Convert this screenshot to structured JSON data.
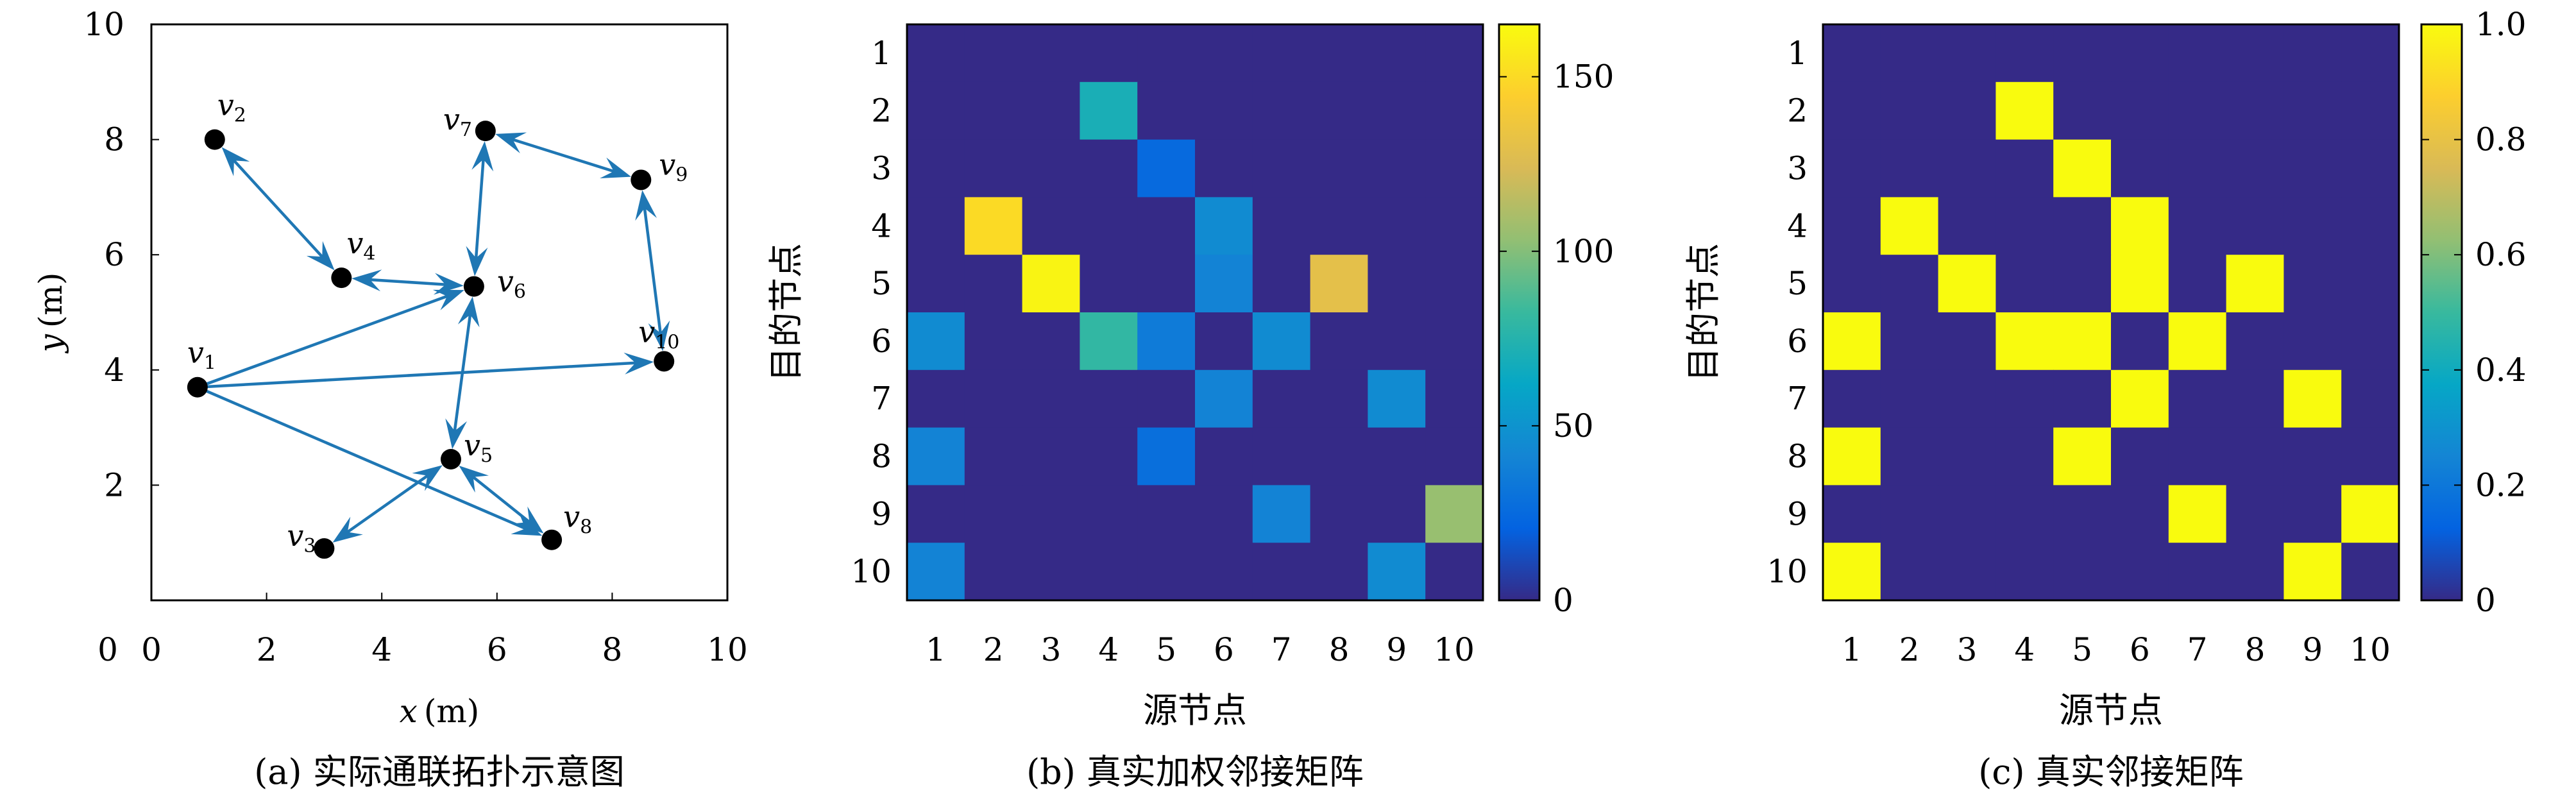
{
  "chart_data": [
    {
      "type": "scatter",
      "caption": "(a) 实际通联拓扑示意图",
      "xlabel_var": "x",
      "xlabel_unit": "(m)",
      "ylabel_var": "y",
      "ylabel_unit": "(m)",
      "xlim": [
        0,
        10
      ],
      "ylim": [
        0,
        10
      ],
      "xticks": [
        0,
        2,
        4,
        6,
        8,
        10
      ],
      "yticks": [
        2,
        4,
        6,
        8,
        10
      ],
      "nodes": [
        {
          "id": 1,
          "name": "v",
          "sub": "1",
          "x": 0.8,
          "y": 3.7
        },
        {
          "id": 2,
          "name": "v",
          "sub": "2",
          "x": 1.1,
          "y": 8.0
        },
        {
          "id": 3,
          "name": "v",
          "sub": "3",
          "x": 3.0,
          "y": 0.9
        },
        {
          "id": 4,
          "name": "v",
          "sub": "4",
          "x": 3.3,
          "y": 5.6
        },
        {
          "id": 5,
          "name": "v",
          "sub": "5",
          "x": 5.2,
          "y": 2.45
        },
        {
          "id": 6,
          "name": "v",
          "sub": "6",
          "x": 5.6,
          "y": 5.45
        },
        {
          "id": 7,
          "name": "v",
          "sub": "7",
          "x": 5.8,
          "y": 8.15
        },
        {
          "id": 8,
          "name": "v",
          "sub": "8",
          "x": 6.95,
          "y": 1.05
        },
        {
          "id": 9,
          "name": "v",
          "sub": "9",
          "x": 8.5,
          "y": 7.3
        },
        {
          "id": 10,
          "name": "v",
          "sub": "10",
          "x": 8.9,
          "y": 4.15
        }
      ],
      "edges": [
        {
          "from": 2,
          "to": 4,
          "arrow_from": true,
          "arrow_to": true
        },
        {
          "from": 4,
          "to": 6,
          "arrow_from": true,
          "arrow_to": true
        },
        {
          "from": 1,
          "to": 6,
          "arrow_from": false,
          "arrow_to": true
        },
        {
          "from": 1,
          "to": 10,
          "arrow_from": false,
          "arrow_to": true
        },
        {
          "from": 1,
          "to": 8,
          "arrow_from": false,
          "arrow_to": true
        },
        {
          "from": 7,
          "to": 6,
          "arrow_from": true,
          "arrow_to": true
        },
        {
          "from": 7,
          "to": 9,
          "arrow_from": true,
          "arrow_to": true
        },
        {
          "from": 9,
          "to": 10,
          "arrow_from": true,
          "arrow_to": true
        },
        {
          "from": 6,
          "to": 5,
          "arrow_from": true,
          "arrow_to": true
        },
        {
          "from": 5,
          "to": 3,
          "arrow_from": true,
          "arrow_to": true
        },
        {
          "from": 5,
          "to": 8,
          "arrow_from": true,
          "arrow_to": true
        }
      ],
      "edge_color": "#1f77b4",
      "node_color": "#000000"
    },
    {
      "type": "heatmap",
      "caption": "(b) 真实加权邻接矩阵",
      "xlabel": "源节点",
      "ylabel": "目的节点",
      "categories": [
        "1",
        "2",
        "3",
        "4",
        "5",
        "6",
        "7",
        "8",
        "9",
        "10"
      ],
      "clim": [
        0,
        165
      ],
      "colorbar_ticks": [
        0,
        50,
        100,
        150
      ],
      "matrix": [
        [
          0,
          0,
          0,
          0,
          0,
          0,
          0,
          0,
          0,
          0
        ],
        [
          0,
          0,
          0,
          70,
          0,
          0,
          0,
          0,
          0,
          0
        ],
        [
          0,
          0,
          0,
          0,
          25,
          0,
          0,
          0,
          0,
          0
        ],
        [
          0,
          150,
          0,
          0,
          0,
          45,
          0,
          0,
          0,
          0
        ],
        [
          0,
          0,
          162,
          0,
          0,
          40,
          0,
          130,
          0,
          0
        ],
        [
          45,
          0,
          0,
          80,
          35,
          0,
          45,
          0,
          0,
          0
        ],
        [
          0,
          0,
          0,
          0,
          0,
          40,
          0,
          0,
          45,
          0
        ],
        [
          40,
          0,
          0,
          0,
          28,
          0,
          0,
          0,
          0,
          0
        ],
        [
          0,
          0,
          0,
          0,
          0,
          0,
          40,
          0,
          0,
          105
        ],
        [
          40,
          0,
          0,
          0,
          0,
          0,
          0,
          0,
          45,
          0
        ]
      ]
    },
    {
      "type": "heatmap",
      "caption": "(c) 真实邻接矩阵",
      "xlabel": "源节点",
      "ylabel": "目的节点",
      "categories": [
        "1",
        "2",
        "3",
        "4",
        "5",
        "6",
        "7",
        "8",
        "9",
        "10"
      ],
      "clim": [
        0,
        1
      ],
      "colorbar_ticks": [
        0,
        0.2,
        0.4,
        0.6,
        0.8,
        1.0
      ],
      "colorbar_labels": [
        "0",
        "0.2",
        "0.4",
        "0.6",
        "0.8",
        "1.0"
      ],
      "matrix": [
        [
          0,
          0,
          0,
          0,
          0,
          0,
          0,
          0,
          0,
          0
        ],
        [
          0,
          0,
          0,
          1,
          0,
          0,
          0,
          0,
          0,
          0
        ],
        [
          0,
          0,
          0,
          0,
          1,
          0,
          0,
          0,
          0,
          0
        ],
        [
          0,
          1,
          0,
          0,
          0,
          1,
          0,
          0,
          0,
          0
        ],
        [
          0,
          0,
          1,
          0,
          0,
          1,
          0,
          1,
          0,
          0
        ],
        [
          1,
          0,
          0,
          1,
          1,
          0,
          1,
          0,
          0,
          0
        ],
        [
          0,
          0,
          0,
          0,
          0,
          1,
          0,
          0,
          1,
          0
        ],
        [
          1,
          0,
          0,
          0,
          1,
          0,
          0,
          0,
          0,
          0
        ],
        [
          0,
          0,
          0,
          0,
          0,
          0,
          1,
          0,
          0,
          1
        ],
        [
          1,
          0,
          0,
          0,
          0,
          0,
          0,
          0,
          1,
          0
        ]
      ]
    }
  ]
}
